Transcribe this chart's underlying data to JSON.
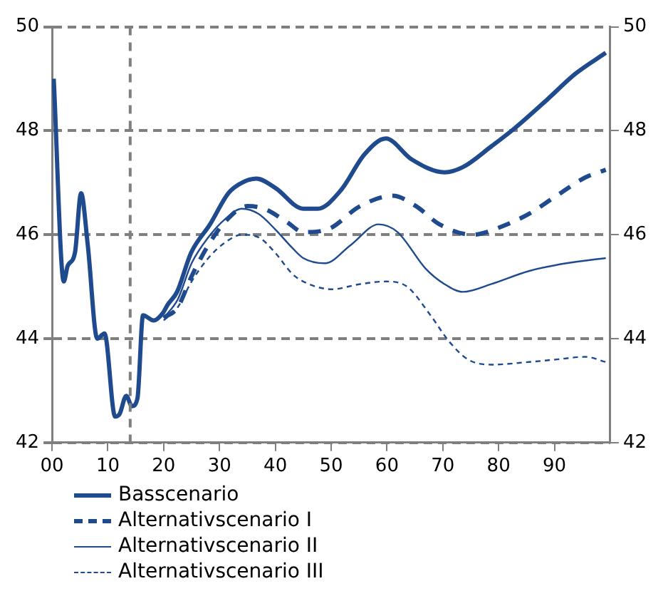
{
  "chart_data": {
    "type": "line",
    "xlim": [
      0,
      100
    ],
    "xticks": [
      {
        "value": 0,
        "label": "00"
      },
      10,
      20,
      30,
      40,
      50,
      60,
      70,
      80,
      90
    ],
    "ylim": [
      42,
      50
    ],
    "yticks": [
      42,
      44,
      46,
      48,
      50
    ],
    "y2lim": [
      42,
      50
    ],
    "y2ticks": [
      42,
      44,
      46,
      48,
      50
    ],
    "grid": "y",
    "legend": "bottom",
    "ref_lines": [
      {
        "axis": "x",
        "value": 14,
        "line_style": "dashed",
        "color": "#7f7f7f"
      }
    ],
    "series": [
      {
        "name": "Basscenario",
        "color": "#1f4b8e",
        "line_style": "solid",
        "x": [
          0.3,
          2.1,
          2.8,
          4.1,
          5.2,
          6.4,
          8.1,
          9.4,
          11.3,
          12.1,
          13.3,
          14.3,
          15.3,
          16.3,
          18.2,
          19.9,
          20.7,
          22.4,
          24.9,
          28.3,
          31.6,
          34,
          36.6,
          40,
          45,
          47.6,
          51.7,
          56,
          59.8,
          64.4,
          70.3,
          73.6,
          78.7,
          82.9,
          88.7,
          93.8,
          99.2
        ],
        "values": [
          49.0,
          45.1,
          45.4,
          45.65,
          46.8,
          45.8,
          44.0,
          44.1,
          42.5,
          42.55,
          42.9,
          42.7,
          42.85,
          44.45,
          44.35,
          44.5,
          44.65,
          44.9,
          45.65,
          46.2,
          46.8,
          47.0,
          47.08,
          46.9,
          46.5,
          46.5,
          46.85,
          47.55,
          47.85,
          47.45,
          47.2,
          47.3,
          47.7,
          48.05,
          48.6,
          49.1,
          49.5
        ]
      },
      {
        "name": "Alternativscenario I",
        "color": "#1f4b8e",
        "line_style": "dashed",
        "x": [
          20,
          22.5,
          25,
          28,
          31,
          35,
          38,
          42,
          45,
          49.3,
          55.2,
          61,
          65.2,
          69.4,
          75.3,
          80.4,
          85.4,
          90.4,
          95.5,
          99.2
        ],
        "values": [
          44.4,
          44.6,
          45.2,
          45.8,
          46.25,
          46.55,
          46.5,
          46.25,
          46.05,
          46.1,
          46.55,
          46.75,
          46.55,
          46.2,
          46.0,
          46.15,
          46.4,
          46.75,
          47.1,
          47.25
        ]
      },
      {
        "name": "Alternativscenario II",
        "color": "#1f4b8e",
        "line_style": "solid",
        "x": [
          20,
          22.5,
          25,
          28,
          31,
          34,
          37,
          40,
          43,
          45,
          48.9,
          53.5,
          58.5,
          61.9,
          66.9,
          70.3,
          73.6,
          78.7,
          85.4,
          92.1,
          99.2
        ],
        "values": [
          44.4,
          44.75,
          45.45,
          45.95,
          46.3,
          46.5,
          46.4,
          46.1,
          45.75,
          45.55,
          45.45,
          45.8,
          46.2,
          46.05,
          45.35,
          45.05,
          44.9,
          45.05,
          45.3,
          45.45,
          45.55
        ]
      },
      {
        "name": "Alternativscenario III",
        "color": "#1f4b8e",
        "line_style": "dashed",
        "x": [
          20,
          22.5,
          25,
          28,
          31,
          34,
          37,
          40,
          43,
          45,
          50.1,
          55.2,
          59.8,
          63.6,
          67.8,
          71.1,
          74.5,
          78.7,
          85.4,
          90.4,
          95.5,
          99.2
        ],
        "values": [
          44.35,
          44.6,
          45.1,
          45.55,
          45.85,
          46.0,
          45.95,
          45.65,
          45.25,
          45.1,
          44.95,
          45.05,
          45.1,
          45.0,
          44.45,
          43.95,
          43.6,
          43.5,
          43.55,
          43.6,
          43.65,
          43.55
        ]
      }
    ]
  }
}
